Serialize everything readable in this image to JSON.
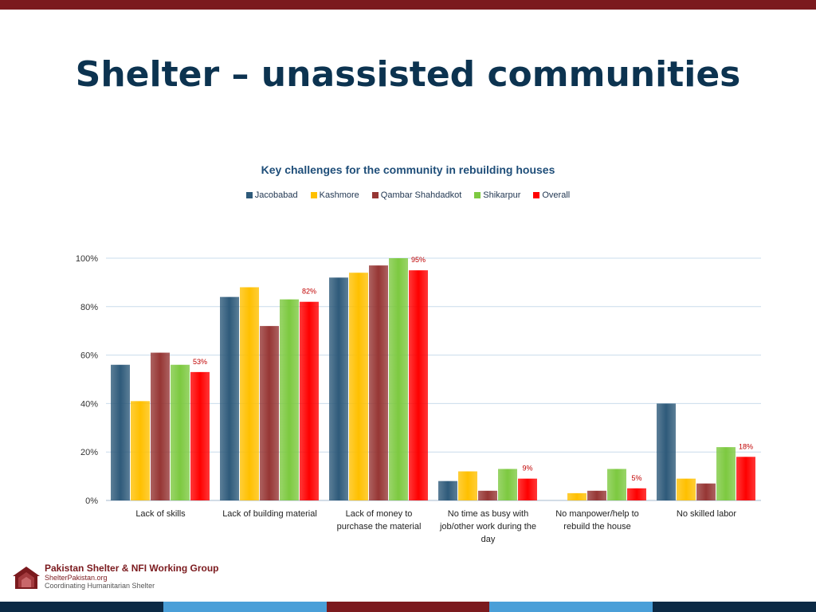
{
  "slide": {
    "title": "Shelter – unassisted communities"
  },
  "colors": {
    "top_bar": "#7b1a1e",
    "title": "#0c3350",
    "bottom_bar": [
      "#0c2a45",
      "#4a9fd8",
      "#7b1a1e",
      "#4a9fd8",
      "#0c2a45"
    ]
  },
  "chart_data": {
    "type": "bar",
    "title": "Key challenges for the community in rebuilding houses",
    "categories": [
      "Lack of skills",
      "Lack of building material",
      "Lack of money to purchase the material",
      "No time as busy with job/other work during the day",
      "No manpower/help to rebuild the house",
      "No skilled labor"
    ],
    "category_lines": [
      [
        "Lack of skills"
      ],
      [
        "Lack of building material"
      ],
      [
        "Lack of money to",
        "purchase the material"
      ],
      [
        "No time as busy with",
        "job/other work during the",
        "day"
      ],
      [
        "No manpower/help to",
        "rebuild the house"
      ],
      [
        "No skilled labor"
      ]
    ],
    "series": [
      {
        "name": "Jacobabad",
        "color": "#2e5a7a",
        "values": [
          56,
          84,
          92,
          8,
          0,
          40
        ]
      },
      {
        "name": "Kashmore",
        "color": "#ffc000",
        "values": [
          41,
          88,
          94,
          12,
          3,
          9
        ]
      },
      {
        "name": "Qambar Shahdadkot",
        "color": "#963634",
        "values": [
          61,
          72,
          97,
          4,
          4,
          7
        ]
      },
      {
        "name": "Shikarpur",
        "color": "#7dc940",
        "values": [
          56,
          83,
          100,
          13,
          13,
          22
        ]
      },
      {
        "name": "Overall",
        "color": "#ff0000",
        "values": [
          53,
          82,
          95,
          9,
          5,
          18
        ]
      }
    ],
    "data_labels": {
      "series": "Overall",
      "labels": [
        "53%",
        "82%",
        "95%",
        "9%",
        "5%",
        "18%"
      ],
      "color": "#c00000"
    },
    "y_ticks": [
      "0%",
      "20%",
      "40%",
      "60%",
      "80%",
      "100%"
    ],
    "ylim": [
      0,
      100
    ],
    "grid": true,
    "legend_position": "top"
  },
  "footer": {
    "org_name": "Pakistan Shelter & NFI Working Group",
    "url": "ShelterPakistan.org",
    "tagline": "Coordinating Humanitarian Shelter"
  }
}
